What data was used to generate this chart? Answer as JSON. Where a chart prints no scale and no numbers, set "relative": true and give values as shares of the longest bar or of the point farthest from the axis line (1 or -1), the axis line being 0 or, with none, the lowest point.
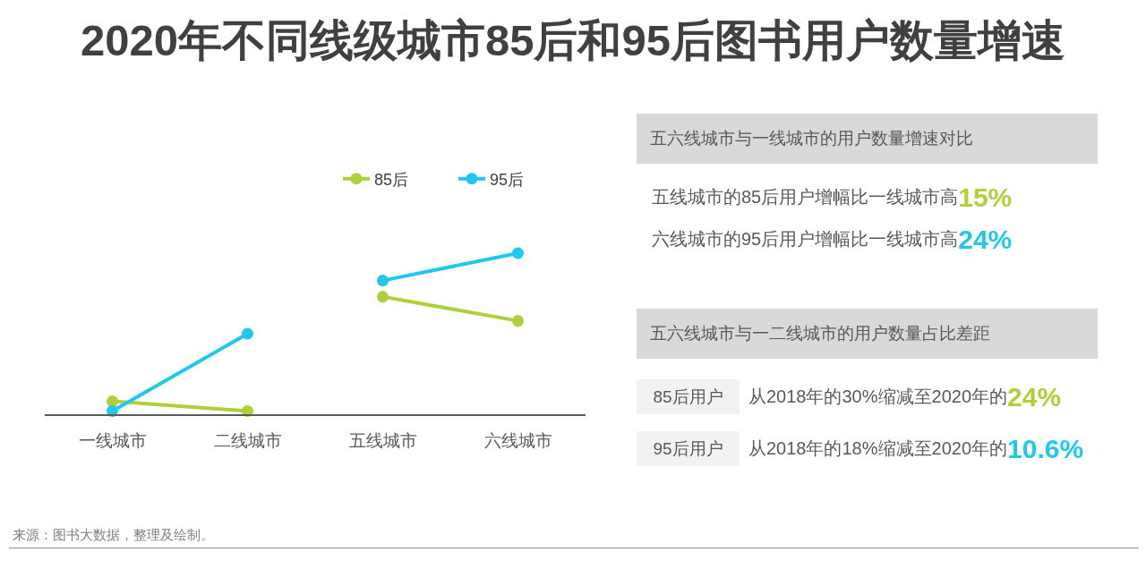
{
  "chart_data": [
    {
      "type": "line",
      "title": "2020年不同线级城市85后和95后图书用户数量增速",
      "categories": [
        "一线城市",
        "二线城市",
        "五线城市",
        "六线城市"
      ],
      "relative": true,
      "series": [
        {
          "name": "85后",
          "color": "#add136",
          "values": [
            0.08,
            0.02,
            null,
            null
          ]
        },
        {
          "name": "95后",
          "color": "#1ec8ef",
          "values": [
            0.02,
            0.5,
            null,
            null
          ]
        },
        {
          "color": "#add136",
          "values": [
            null,
            null,
            0.73,
            0.58
          ]
        },
        {
          "color": "#1ec8ef",
          "values": [
            null,
            null,
            0.83,
            1
          ]
        }
      ],
      "marker": "circle",
      "line_style": "solid",
      "legend": "top right",
      "grid": false,
      "annotations": [
        "来源：图书大数据，整理及绘制。"
      ]
    },
    {
      "type": "other",
      "title": "五六线城市与一线城市的用户数量增速对比",
      "categories": [
        "五线城市的85后用户增幅比一线城市高",
        "六线城市的95后用户增幅比一线城市高"
      ],
      "value_labels": [
        "15%",
        "24%"
      ],
      "colors": [
        "#add136",
        "#1ec8ef"
      ]
    },
    {
      "type": "other",
      "title": "五六线城市与一二线城市的用户数量占比差距",
      "categories": [
        "从2018年的30%缩减至2020年的",
        "从2018年的18%缩减至2020年的"
      ],
      "annotations": [
        "85后用户",
        "95后用户"
      ],
      "value_labels": [
        "24%",
        "10.6%"
      ],
      "colors": [
        "#add136",
        "#1ec8ef"
      ]
    }
  ]
}
